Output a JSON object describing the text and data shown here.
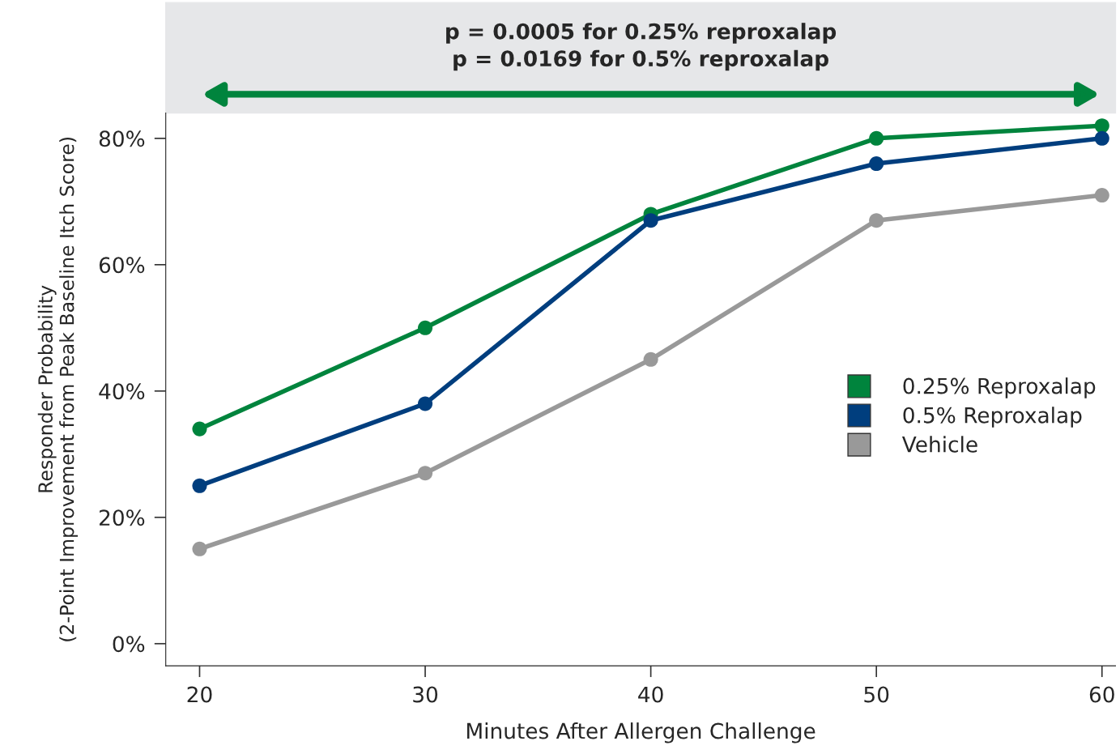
{
  "chart_data": {
    "type": "line",
    "annotations": [
      "p = 0.0005 for 0.25% reproxalap\np = 0.0169 for 0.5% reproxalap"
    ],
    "xlabel": "Minutes After Allergen Challenge",
    "ylabel": "Responder Probability\n(2-Point Improvement from Peak Baseline Itch Score)",
    "x": [
      20,
      30,
      40,
      50,
      60
    ],
    "series": [
      {
        "name": "0.25% Reproxalap",
        "color": "#00843d",
        "values": [
          34,
          50,
          68,
          80,
          82
        ]
      },
      {
        "name": "0.5% Reproxalap",
        "color": "#003e7e",
        "values": [
          25,
          38,
          67,
          76,
          80
        ]
      },
      {
        "name": "Vehicle",
        "color": "#999999",
        "values": [
          15,
          27,
          45,
          67,
          71
        ]
      }
    ],
    "xlim": [
      18.5,
      60.6
    ],
    "xticks": [
      20,
      30,
      40,
      50,
      60
    ],
    "ylim": [
      -3.5,
      84
    ],
    "yticks": [
      {
        "value": 0,
        "label": "0%"
      },
      {
        "value": 20,
        "label": "20%"
      },
      {
        "value": 40,
        "label": "40%"
      },
      {
        "value": 60,
        "label": "60%"
      },
      {
        "value": 80,
        "label": "80%"
      }
    ],
    "grid": false,
    "legend": "right",
    "marker": "circle",
    "line_style": "solid"
  }
}
